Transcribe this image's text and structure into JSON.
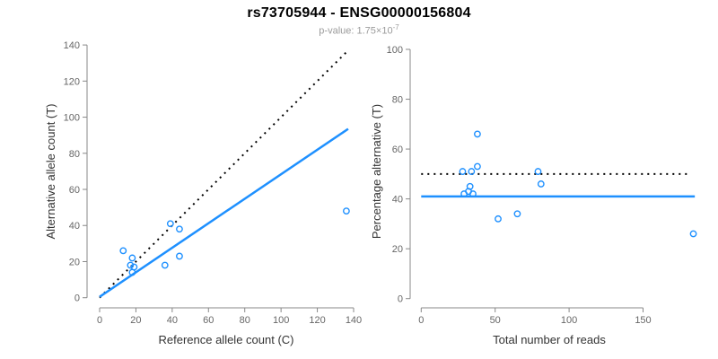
{
  "header": {
    "title": "rs73705944 - ENSG00000156804",
    "subtitle_prefix": "p-value: 1.75×10",
    "subtitle_exponent": "-7"
  },
  "colors": {
    "accent_blue": "#1E90FF",
    "dotted_black": "#000000",
    "axis_stroke": "#888888",
    "tick_text": "#666666",
    "axis_title_text": "#333333"
  },
  "chart_data": [
    {
      "type": "scatter",
      "title": "",
      "xlabel": "Reference allele count (C)",
      "ylabel": "Alternative allele count (T)",
      "xlim": [
        0,
        140
      ],
      "ylim": [
        0,
        140
      ],
      "xticks": [
        0,
        20,
        40,
        60,
        80,
        100,
        120,
        140
      ],
      "yticks": [
        0,
        20,
        40,
        60,
        80,
        100,
        120,
        140
      ],
      "grid": false,
      "legend": "none",
      "points": [
        [
          13,
          26
        ],
        [
          17,
          18
        ],
        [
          18,
          22
        ],
        [
          19,
          17
        ],
        [
          18,
          14
        ],
        [
          36,
          18
        ],
        [
          39,
          41
        ],
        [
          44,
          23
        ],
        [
          44,
          38
        ],
        [
          136,
          48
        ]
      ],
      "lines": [
        {
          "name": "identity-line",
          "style": "dotted",
          "color": "#000000",
          "from": [
            0,
            0
          ],
          "to": [
            137,
            137
          ]
        },
        {
          "name": "regression-line",
          "style": "solid",
          "color": "#1E90FF",
          "from": [
            0,
            0.5
          ],
          "to": [
            137,
            93.5
          ]
        }
      ]
    },
    {
      "type": "scatter",
      "title": "",
      "xlabel": "Total number of reads",
      "ylabel": "Percentage alternative (T)",
      "xlim": [
        0,
        150
      ],
      "ylim": [
        0,
        100
      ],
      "xticks": [
        0,
        50,
        100,
        150
      ],
      "yticks": [
        0,
        20,
        40,
        60,
        80,
        100
      ],
      "grid": false,
      "legend": "none",
      "points": [
        [
          38,
          66
        ],
        [
          28,
          51
        ],
        [
          34,
          51
        ],
        [
          38,
          53
        ],
        [
          33,
          45
        ],
        [
          29,
          42
        ],
        [
          32,
          43
        ],
        [
          35,
          42
        ],
        [
          52,
          32
        ],
        [
          65,
          34
        ],
        [
          79,
          51
        ],
        [
          81,
          46
        ],
        [
          184,
          26
        ]
      ],
      "lines": [
        {
          "name": "expected-50pct-line",
          "style": "dotted",
          "color": "#000000",
          "from": [
            0,
            50
          ],
          "to": [
            181,
            50
          ]
        },
        {
          "name": "mean-pct-line",
          "style": "solid",
          "color": "#1E90FF",
          "from": [
            0,
            41
          ],
          "to": [
            185,
            41
          ]
        }
      ]
    }
  ]
}
